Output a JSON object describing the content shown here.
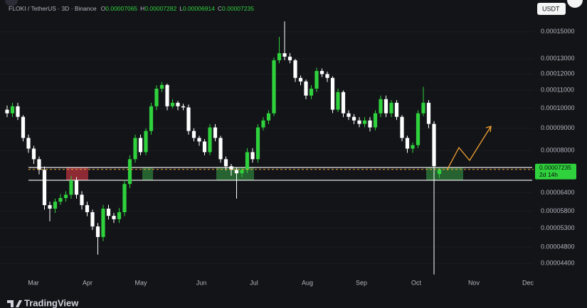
{
  "chart_data": {
    "type": "candlestick",
    "title": "FLOKI / TetherUS · 3D · Binance",
    "ohlc_labels": [
      "O",
      "H",
      "L",
      "C"
    ],
    "currency": "USDT",
    "countdown": "2d 14h",
    "brand": "TradingView",
    "log_scale": true,
    "grid": true,
    "up_color": "#2fd13c",
    "down_color": "#ffffff",
    "x_labels": [
      "Mar",
      "Apr",
      "May",
      "Jun",
      "Jul",
      "Aug",
      "Sep",
      "Oct",
      "Nov",
      "Dec"
    ],
    "ylim": [
      4.13e-05,
      0.0001775
    ],
    "yticks": [
      {
        "value": 0.00015,
        "label": "0.00015000"
      },
      {
        "value": 0.00013,
        "label": "0.00013000"
      },
      {
        "value": 0.00012,
        "label": "0.00012000"
      },
      {
        "value": 0.00011,
        "label": "0.00011000"
      },
      {
        "value": 0.0001,
        "label": "0.00010000"
      },
      {
        "value": 9e-05,
        "label": "0.00009000"
      },
      {
        "value": 8e-05,
        "label": "0.00008000"
      },
      {
        "value": 6.4e-05,
        "label": "0.00006400"
      },
      {
        "value": 5.8e-05,
        "label": "0.00005800"
      },
      {
        "value": 5.3e-05,
        "label": "0.00005300"
      },
      {
        "value": 4.8e-05,
        "label": "0.00004800"
      },
      {
        "value": 4.4e-05,
        "label": "0.00004400"
      }
    ],
    "open": [
      9.93e-05,
      9.74e-05,
      0.0001011,
      9.56e-05,
      8.55e-05,
      8.08e-05,
      7.64e-05,
      7.22e-05,
      5.99e-05,
      5.88e-05,
      6.1e-05,
      6.22e-05,
      6.33e-05,
      6.83e-05,
      6.33e-05,
      5.99e-05,
      5.77e-05,
      5.35e-05,
      5.06e-05,
      5.88e-05,
      5.66e-05,
      5.56e-05,
      5.77e-05,
      6.7e-05,
      7.64e-05,
      8.55e-05,
      7.93e-05,
      8.87e-05,
      0.0001011,
      0.000111,
      0.0001132,
      0.0001011,
      0.000103,
      0.0001011,
      0.0001005,
      8.87e-05,
      8.55e-05,
      8.39e-05,
      7.93e-05,
      9.04e-05,
      8.55e-05,
      7.64e-05,
      7.36e-05,
      7.22e-05,
      7.09e-05,
      7.22e-05,
      7.93e-05,
      7.64e-05,
      9.04e-05,
      9.38e-05,
      9.74e-05,
      0.000129,
      0.0001339,
      0.0001315,
      0.000129,
      0.0001175,
      0.0001153,
      0.000107,
      0.000111,
      0.0001219,
      0.0001199,
      0.0001175,
      9.93e-05,
      0.000109,
      9.74e-05,
      9.56e-05,
      9.38e-05,
      9.21e-05,
      9.38e-05,
      9.04e-05,
      9.74e-05,
      0.000105,
      9.74e-05,
      0.000103,
      9.56e-05,
      8.55e-05,
      8.08e-05,
      8.23e-05,
      9.74e-05,
      0.000103,
      9.21e-05,
      7.065e-05
    ],
    "high": [
      0.0001015,
      0.000103,
      0.000103,
      9.65e-05,
      8.7e-05,
      8.2e-05,
      7.75e-05,
      7.35e-05,
      6.1e-05,
      6.2e-05,
      6.35e-05,
      6.45e-05,
      7e-05,
      6.95e-05,
      6.45e-05,
      6.1e-05,
      5.85e-05,
      5.45e-05,
      6e-05,
      6e-05,
      5.75e-05,
      5.9e-05,
      6.85e-05,
      7.8e-05,
      8.7e-05,
      8.7e-05,
      9e-05,
      0.000103,
      0.000113,
      0.000115,
      0.000114,
      0.000105,
      0.000104,
      0.0001025,
      0.000102,
      9e-05,
      8.65e-05,
      8.5e-05,
      9.2e-05,
      9.2e-05,
      8.65e-05,
      7.75e-05,
      7.45e-05,
      7.3e-05,
      7.3e-05,
      8.1e-05,
      8.1e-05,
      9.2e-05,
      9.55e-05,
      9.9e-05,
      0.000131,
      0.000146,
      0.0001585,
      0.000134,
      0.00013,
      0.000119,
      0.0001165,
      0.000113,
      0.000124,
      0.0001235,
      0.0001215,
      0.0001185,
      0.000111,
      0.00011,
      9.9e-05,
      9.7e-05,
      9.55e-05,
      9.55e-05,
      9.55e-05,
      9.9e-05,
      0.000107,
      0.000107,
      0.0001045,
      0.0001045,
      9.65e-05,
      8.65e-05,
      8.35e-05,
      9.9e-05,
      0.000112,
      0.0001045,
      9.35e-05,
      7.282e-05
    ],
    "low": [
      9.55e-05,
      9.55e-05,
      9.4e-05,
      8.4e-05,
      7.9e-05,
      7.45e-05,
      7.05e-05,
      5.85e-05,
      5.5e-05,
      5.75e-05,
      6e-05,
      6.1e-05,
      6.2e-05,
      6.2e-05,
      5.85e-05,
      5.65e-05,
      5.25e-05,
      4.61e-05,
      4.95e-05,
      5.55e-05,
      5.45e-05,
      5.45e-05,
      5.65e-05,
      6.55e-05,
      7.5e-05,
      7.8e-05,
      7.8e-05,
      8.7e-05,
      9.9e-05,
      0.000109,
      9.9e-05,
      0.0001,
      9.9e-05,
      9.9e-05,
      8.7e-05,
      8.4e-05,
      8.2e-05,
      7.8e-05,
      7.8e-05,
      8.4e-05,
      7.5e-05,
      7.2e-05,
      7e-05,
      6.2e-05,
      6.95e-05,
      7.1e-05,
      7.5e-05,
      7.5e-05,
      8.9e-05,
      9.2e-05,
      9.6e-05,
      0.000127,
      0.000129,
      0.000127,
      0.000115,
      0.000113,
      0.000105,
      0.000105,
      0.000109,
      0.000118,
      0.000115,
      9.75e-05,
      9.8e-05,
      9.55e-05,
      9.4e-05,
      9.2e-05,
      9.05e-05,
      9.05e-05,
      8.85e-05,
      8.9e-05,
      9.55e-05,
      9.55e-05,
      9.55e-05,
      9.4e-05,
      8.4e-05,
      7.9e-05,
      7.9e-05,
      8.1e-05,
      9.6e-05,
      9e-05,
      4.15e-05,
      6.914e-05
    ],
    "close": [
      9.74e-05,
      0.0001011,
      9.56e-05,
      8.55e-05,
      8.08e-05,
      7.64e-05,
      7.22e-05,
      5.99e-05,
      5.88e-05,
      6.1e-05,
      6.22e-05,
      6.33e-05,
      6.83e-05,
      6.33e-05,
      5.99e-05,
      5.77e-05,
      5.35e-05,
      5.06e-05,
      5.88e-05,
      5.66e-05,
      5.56e-05,
      5.77e-05,
      6.7e-05,
      7.64e-05,
      8.55e-05,
      7.93e-05,
      8.87e-05,
      0.0001011,
      0.000111,
      0.0001132,
      0.0001011,
      0.000103,
      0.0001011,
      0.0001005,
      8.87e-05,
      8.55e-05,
      8.39e-05,
      7.93e-05,
      9.04e-05,
      8.55e-05,
      7.64e-05,
      7.36e-05,
      7.22e-05,
      7.09e-05,
      7.22e-05,
      7.93e-05,
      7.64e-05,
      9.04e-05,
      9.38e-05,
      9.74e-05,
      0.000129,
      0.0001339,
      0.0001315,
      0.000129,
      0.0001175,
      0.0001153,
      0.000107,
      0.000111,
      0.0001219,
      0.0001199,
      0.0001175,
      9.93e-05,
      0.000109,
      9.74e-05,
      9.56e-05,
      9.38e-05,
      9.21e-05,
      9.38e-05,
      9.04e-05,
      9.74e-05,
      0.000105,
      9.74e-05,
      0.000103,
      9.56e-05,
      8.55e-05,
      8.08e-05,
      8.23e-05,
      9.74e-05,
      0.000103,
      9.21e-05,
      7.36e-05,
      7.235e-05
    ]
  }
}
